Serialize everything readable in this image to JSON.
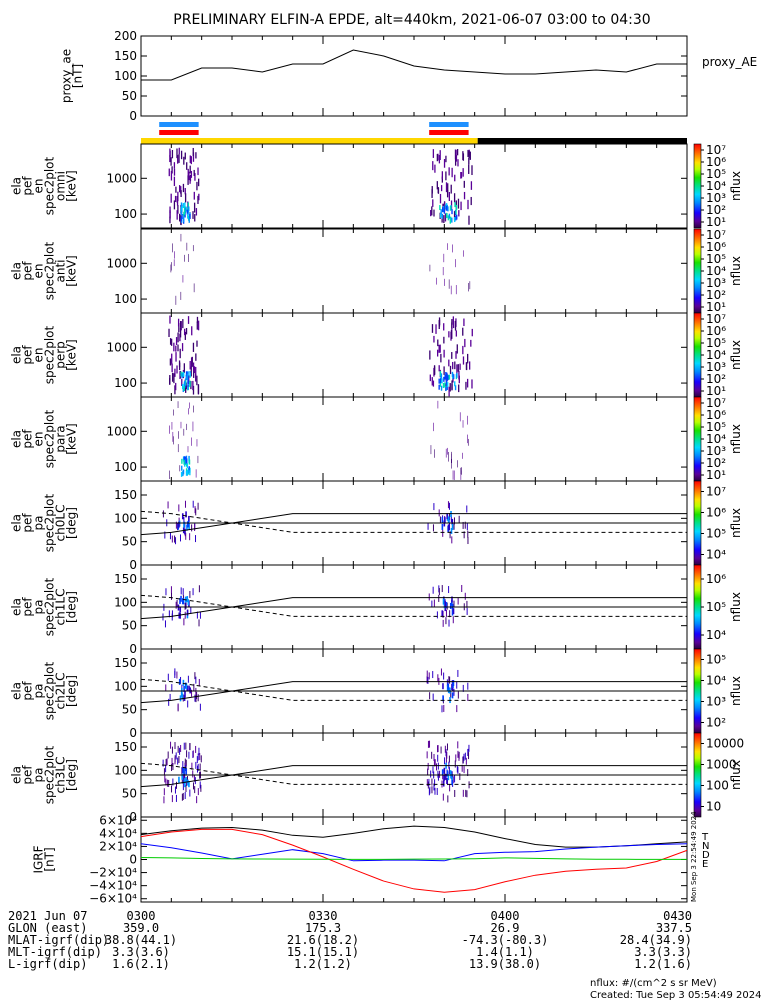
{
  "title": "PRELIMINARY ELFIN-A EPDE, alt=440km, 2021-06-07 03:00 to 04:30",
  "colors": {
    "ae_line": "#000000",
    "blue_bar": "#1e90ff",
    "red_bar": "#ff0000",
    "yellow_bar": "#ffd700",
    "black_bar": "#000000",
    "igrf_T": "#000000",
    "igrf_N": "#0000ff",
    "igrf_D": "#ff0000",
    "igrf_E": "#00cc00"
  },
  "chart_data": [
    {
      "type": "line",
      "id": "proxy_ae",
      "ylabel_lines": [
        "proxy_ae",
        "[nT]"
      ],
      "legend": "proxy_AE",
      "ylim": [
        0,
        200
      ],
      "yticks": [
        0,
        50,
        100,
        150,
        200
      ],
      "x_minutes": [
        0,
        5,
        10,
        15,
        20,
        25,
        30,
        35,
        40,
        45,
        50,
        55,
        60,
        65,
        70,
        75,
        80,
        85,
        90
      ],
      "values": [
        90,
        90,
        120,
        120,
        110,
        130,
        130,
        165,
        150,
        125,
        115,
        110,
        105,
        105,
        110,
        115,
        110,
        130,
        130
      ]
    },
    {
      "type": "bar",
      "id": "science_zones",
      "segments": [
        {
          "name": "blue-1",
          "x0": 3.0,
          "x1": 9.5
        },
        {
          "name": "red-1",
          "x0": 3.0,
          "x1": 9.5
        },
        {
          "name": "blue-2",
          "x0": 47.5,
          "x1": 54.0
        },
        {
          "name": "red-2",
          "x0": 47.5,
          "x1": 54.0
        },
        {
          "name": "sunlit",
          "x0": 0.0,
          "x1": 55.5
        },
        {
          "name": "shadow",
          "x0": 55.5,
          "x1": 90.0
        }
      ]
    },
    {
      "type": "heatmap",
      "id": "spectra",
      "panels": [
        {
          "name": "omni",
          "ylabel_lines": [
            "ela",
            "pef",
            "en",
            "spec2plot",
            "omni",
            "[keV]"
          ],
          "yticks": [
            100,
            1000
          ],
          "colorbar": {
            "label": "nflux",
            "ticks": [
              "10¹",
              "10²",
              "10³",
              "10⁴",
              "10⁵",
              "10⁶",
              "10⁷"
            ]
          }
        },
        {
          "name": "anti",
          "ylabel_lines": [
            "ela",
            "pef",
            "en",
            "spec2plot",
            "anti",
            "[keV]"
          ],
          "yticks": [
            100,
            1000
          ],
          "colorbar": {
            "label": "nflux",
            "ticks": [
              "10¹",
              "10²",
              "10³",
              "10⁴",
              "10⁵",
              "10⁶",
              "10⁷"
            ]
          }
        },
        {
          "name": "perp",
          "ylabel_lines": [
            "ela",
            "pef",
            "en",
            "spec2plot",
            "perp",
            "[keV]"
          ],
          "yticks": [
            100,
            1000
          ],
          "colorbar": {
            "label": "nflux",
            "ticks": [
              "10¹",
              "10²",
              "10³",
              "10⁴",
              "10⁵",
              "10⁶",
              "10⁷"
            ]
          }
        },
        {
          "name": "para",
          "ylabel_lines": [
            "ela",
            "pef",
            "en",
            "spec2plot",
            "para",
            "[keV]"
          ],
          "yticks": [
            100,
            1000
          ],
          "colorbar": {
            "label": "nflux",
            "ticks": [
              "10¹",
              "10²",
              "10³",
              "10⁴",
              "10⁵",
              "10⁶",
              "10⁷"
            ]
          }
        }
      ]
    },
    {
      "type": "heatmap",
      "id": "pitch_angle",
      "panels": [
        {
          "name": "ch0LC",
          "ylabel_lines": [
            "ela",
            "pef",
            "pa",
            "spec2plot",
            "ch0LC",
            "[deg]"
          ],
          "yticks": [
            0,
            50,
            100,
            150
          ],
          "colorbar": {
            "label": "nflux",
            "ticks": [
              "10⁴",
              "10⁵",
              "10⁶",
              "10⁷"
            ]
          }
        },
        {
          "name": "ch1LC",
          "ylabel_lines": [
            "ela",
            "pef",
            "pa",
            "spec2plot",
            "ch1LC",
            "[deg]"
          ],
          "yticks": [
            0,
            50,
            100,
            150
          ],
          "colorbar": {
            "label": "nflux",
            "ticks": [
              "10⁴",
              "10⁵",
              "10⁶"
            ]
          }
        },
        {
          "name": "ch2LC",
          "ylabel_lines": [
            "ela",
            "pef",
            "pa",
            "spec2plot",
            "ch2LC",
            "[deg]"
          ],
          "yticks": [
            0,
            50,
            100,
            150
          ],
          "colorbar": {
            "label": "nflux",
            "ticks": [
              "10²",
              "10³",
              "10⁴",
              "10⁵"
            ]
          }
        },
        {
          "name": "ch3LC",
          "ylabel_lines": [
            "ela",
            "pef",
            "pa",
            "spec2plot",
            "ch3LC",
            "[deg]"
          ],
          "yticks": [
            0,
            50,
            100,
            150
          ],
          "colorbar": {
            "label": "nflux",
            "ticks": [
              "10",
              "100",
              "1000",
              "10000"
            ]
          }
        }
      ]
    },
    {
      "type": "line",
      "id": "igrf",
      "ylabel_lines": [
        "IGRF",
        "[nT]"
      ],
      "ylim": [
        -65000,
        65000
      ],
      "yticks": [
        -60000,
        -40000,
        -20000,
        0,
        20000,
        40000,
        60000
      ],
      "ytick_labels": [
        "−6×10⁴",
        "−4×10⁴",
        "−2×10⁴",
        "0",
        "2×10⁴",
        "4×10⁴",
        "6×10⁴"
      ],
      "legend": [
        "T",
        "N",
        "D",
        "E"
      ],
      "x_minutes": [
        0,
        5,
        10,
        15,
        20,
        25,
        30,
        35,
        40,
        45,
        50,
        55,
        60,
        65,
        70,
        75,
        80,
        85,
        90
      ],
      "series": [
        {
          "name": "T",
          "values": [
            38000,
            44000,
            48000,
            49000,
            45000,
            37000,
            34000,
            40000,
            47000,
            51000,
            49000,
            42000,
            32000,
            23000,
            19000,
            19000,
            21000,
            24000,
            27000
          ]
        },
        {
          "name": "N",
          "values": [
            24000,
            18000,
            10000,
            1000,
            8000,
            15000,
            9000,
            -2000,
            -1000,
            -1000,
            -2000,
            9000,
            11000,
            12000,
            16000,
            19000,
            21000,
            23000,
            24000
          ]
        },
        {
          "name": "D",
          "values": [
            35000,
            42000,
            46000,
            46000,
            38000,
            22000,
            4000,
            -15000,
            -33000,
            -45000,
            -50000,
            -46000,
            -34000,
            -24000,
            -18000,
            -15000,
            -13000,
            -3000,
            14000
          ]
        },
        {
          "name": "E",
          "values": [
            3000,
            2500,
            1500,
            1000,
            800,
            500,
            300,
            100,
            200,
            500,
            800,
            1200,
            2500,
            1800,
            900,
            400,
            300,
            200,
            100
          ]
        }
      ]
    }
  ],
  "xaxis": {
    "rows": [
      {
        "label": "2021 Jun 07",
        "values": [
          "0300",
          "0330",
          "0400",
          "0430"
        ]
      },
      {
        "label": "GLON (east)",
        "values": [
          "359.0",
          "175.3",
          "26.9",
          "337.5"
        ]
      },
      {
        "label": "MLAT-igrf(dip)",
        "values": [
          "38.8(44.1)",
          "21.6(18.2)",
          "-74.3(-80.3)",
          "28.4(34.9)"
        ]
      },
      {
        "label": "MLT-igrf(dip)",
        "values": [
          "3.3(3.6)",
          "15.1(15.1)",
          "1.4(1.1)",
          "3.3(3.3)"
        ]
      },
      {
        "label": "L-igrf(dip)",
        "values": [
          "1.6(2.1)",
          "1.2(1.2)",
          "13.9(38.0)",
          "1.2(1.6)"
        ]
      }
    ]
  },
  "footer": {
    "nflux": "nflux: #/(cm^2 s sr MeV)",
    "created": "Created: Tue Sep  3 05:54:49 2024",
    "side_stamp": "Mon Sep  3 22:54:49 2024"
  }
}
